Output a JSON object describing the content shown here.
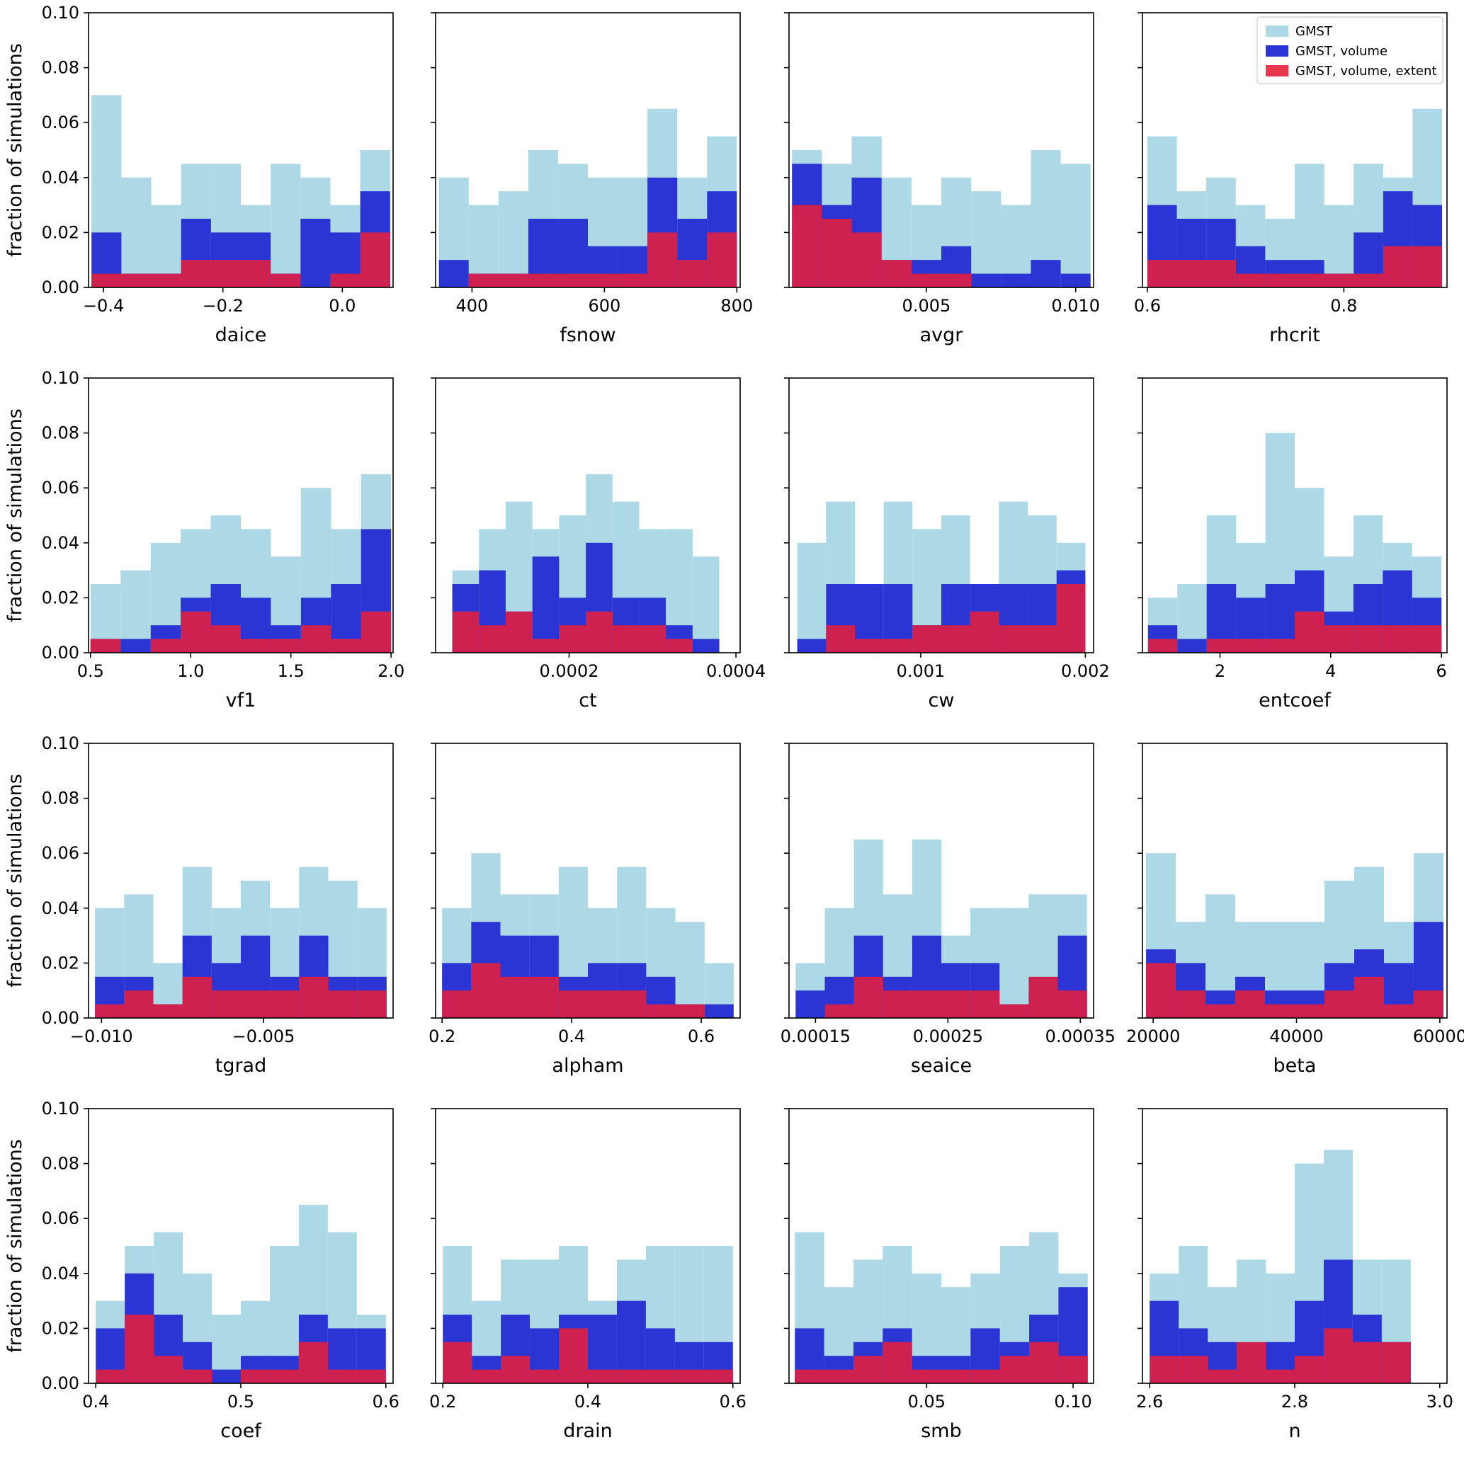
{
  "chart_data": {
    "type": "bar",
    "subtype": "overlaid-histogram-grid",
    "ylabel": "fraction of simulations",
    "ylim": [
      0,
      0.1
    ],
    "y_ticks": [
      {
        "v": 0.0,
        "label": "0.00"
      },
      {
        "v": 0.02,
        "label": "0.02"
      },
      {
        "v": 0.04,
        "label": "0.04"
      },
      {
        "v": 0.06,
        "label": "0.06"
      },
      {
        "v": 0.08,
        "label": "0.08"
      },
      {
        "v": 0.1,
        "label": "0.10"
      }
    ],
    "legend": {
      "position": "top-right-of-panel-4",
      "entries": [
        {
          "label": "GMST",
          "color": "#ADD8E6"
        },
        {
          "label": "GMST, volume",
          "color": "#2b35d4"
        },
        {
          "label": "GMST, volume, extent",
          "color": "#e8364c"
        }
      ]
    },
    "colors": {
      "gmst": "#ADD8E6",
      "volume": "#2b35d4",
      "extent": "#cf2150"
    },
    "panels": [
      {
        "xlabel": "daice",
        "xlim": [
          -0.425,
          0.085
        ],
        "bins": [
          -0.42,
          0.08
        ],
        "x_ticks": [
          {
            "v": -0.4,
            "label": "−0.4"
          },
          {
            "v": -0.2,
            "label": "−0.2"
          },
          {
            "v": 0.0,
            "label": "0.0"
          }
        ],
        "series": {
          "gmst": [
            0.07,
            0.04,
            0.03,
            0.045,
            0.045,
            0.03,
            0.045,
            0.04,
            0.03,
            0.05
          ],
          "volume": [
            0.02,
            0.005,
            0.005,
            0.025,
            0.02,
            0.02,
            0.005,
            0.025,
            0.02,
            0.035
          ],
          "extent": [
            0.005,
            0.005,
            0.005,
            0.01,
            0.01,
            0.01,
            0.005,
            0.0,
            0.005,
            0.02
          ]
        }
      },
      {
        "xlabel": "fsnow",
        "xlim": [
          345,
          805
        ],
        "bins": [
          350,
          800
        ],
        "x_ticks": [
          {
            "v": 400,
            "label": "400"
          },
          {
            "v": 600,
            "label": "600"
          },
          {
            "v": 800,
            "label": "800"
          }
        ],
        "series": {
          "gmst": [
            0.04,
            0.03,
            0.035,
            0.05,
            0.045,
            0.04,
            0.04,
            0.065,
            0.04,
            0.055
          ],
          "volume": [
            0.01,
            0.005,
            0.005,
            0.025,
            0.025,
            0.015,
            0.015,
            0.04,
            0.025,
            0.035
          ],
          "extent": [
            0.0,
            0.005,
            0.005,
            0.005,
            0.005,
            0.005,
            0.005,
            0.02,
            0.01,
            0.02
          ]
        }
      },
      {
        "xlabel": "avgr",
        "xlim": [
          0.0004,
          0.0106
        ],
        "bins": [
          0.0005,
          0.0105
        ],
        "x_ticks": [
          {
            "v": 0.005,
            "label": "0.005"
          },
          {
            "v": 0.01,
            "label": "0.010"
          }
        ],
        "series": {
          "gmst": [
            0.05,
            0.045,
            0.055,
            0.04,
            0.03,
            0.04,
            0.035,
            0.03,
            0.05,
            0.045
          ],
          "volume": [
            0.045,
            0.03,
            0.04,
            0.01,
            0.01,
            0.015,
            0.005,
            0.005,
            0.01,
            0.005
          ],
          "extent": [
            0.03,
            0.025,
            0.02,
            0.01,
            0.005,
            0.005,
            0.0,
            0.0,
            0.0,
            0.0
          ]
        }
      },
      {
        "xlabel": "rhcrit",
        "xlim": [
          0.595,
          0.905
        ],
        "bins": [
          0.6,
          0.9
        ],
        "x_ticks": [
          {
            "v": 0.6,
            "label": "0.6"
          },
          {
            "v": 0.8,
            "label": "0.8"
          }
        ],
        "series": {
          "gmst": [
            0.055,
            0.035,
            0.04,
            0.03,
            0.025,
            0.045,
            0.03,
            0.045,
            0.04,
            0.065
          ],
          "volume": [
            0.03,
            0.025,
            0.025,
            0.015,
            0.01,
            0.01,
            0.005,
            0.02,
            0.035,
            0.03
          ],
          "extent": [
            0.01,
            0.01,
            0.01,
            0.005,
            0.005,
            0.005,
            0.005,
            0.005,
            0.015,
            0.015
          ]
        }
      },
      {
        "xlabel": "vf1",
        "xlim": [
          0.49,
          2.01
        ],
        "bins": [
          0.5,
          2.0
        ],
        "x_ticks": [
          {
            "v": 0.5,
            "label": "0.5"
          },
          {
            "v": 1.0,
            "label": "1.0"
          },
          {
            "v": 1.5,
            "label": "1.5"
          },
          {
            "v": 2.0,
            "label": "2.0"
          }
        ],
        "series": {
          "gmst": [
            0.025,
            0.03,
            0.04,
            0.045,
            0.05,
            0.045,
            0.035,
            0.06,
            0.045,
            0.065
          ],
          "volume": [
            0.005,
            0.005,
            0.01,
            0.02,
            0.025,
            0.02,
            0.01,
            0.02,
            0.025,
            0.045
          ],
          "extent": [
            0.005,
            0.0,
            0.005,
            0.015,
            0.01,
            0.005,
            0.005,
            0.01,
            0.005,
            0.015
          ]
        }
      },
      {
        "xlabel": "ct",
        "xlim": [
          4e-05,
          0.000405
        ],
        "bins": [
          6e-05,
          0.00038
        ],
        "x_ticks": [
          {
            "v": 0.0002,
            "label": "0.0002"
          },
          {
            "v": 0.0004,
            "label": "0.0004"
          }
        ],
        "series": {
          "gmst": [
            0.03,
            0.045,
            0.055,
            0.045,
            0.05,
            0.065,
            0.055,
            0.045,
            0.045,
            0.035
          ],
          "volume": [
            0.025,
            0.03,
            0.015,
            0.035,
            0.02,
            0.04,
            0.02,
            0.02,
            0.01,
            0.005
          ],
          "extent": [
            0.015,
            0.01,
            0.015,
            0.005,
            0.01,
            0.015,
            0.01,
            0.01,
            0.005,
            0.0
          ]
        }
      },
      {
        "xlabel": "cw",
        "xlim": [
          0.0002,
          0.00205
        ],
        "bins": [
          0.00025,
          0.002
        ],
        "x_ticks": [
          {
            "v": 0.001,
            "label": "0.001"
          },
          {
            "v": 0.002,
            "label": "0.002"
          }
        ],
        "series": {
          "gmst": [
            0.04,
            0.055,
            0.025,
            0.055,
            0.045,
            0.05,
            0.025,
            0.055,
            0.05,
            0.04
          ],
          "volume": [
            0.005,
            0.025,
            0.025,
            0.025,
            0.01,
            0.025,
            0.025,
            0.025,
            0.025,
            0.03
          ],
          "extent": [
            0.0,
            0.01,
            0.005,
            0.005,
            0.01,
            0.01,
            0.015,
            0.01,
            0.01,
            0.025
          ]
        }
      },
      {
        "xlabel": "entcoef",
        "xlim": [
          0.6,
          6.1
        ],
        "bins": [
          0.7,
          6.0
        ],
        "x_ticks": [
          {
            "v": 2,
            "label": "2"
          },
          {
            "v": 4,
            "label": "4"
          },
          {
            "v": 6,
            "label": "6"
          }
        ],
        "series": {
          "gmst": [
            0.02,
            0.025,
            0.05,
            0.04,
            0.08,
            0.06,
            0.035,
            0.05,
            0.04,
            0.035
          ],
          "volume": [
            0.01,
            0.005,
            0.025,
            0.02,
            0.025,
            0.03,
            0.015,
            0.025,
            0.03,
            0.02
          ],
          "extent": [
            0.005,
            0.0,
            0.005,
            0.005,
            0.005,
            0.015,
            0.01,
            0.01,
            0.01,
            0.01
          ]
        }
      },
      {
        "xlabel": "tgrad",
        "xlim": [
          -0.0104,
          -0.001
        ],
        "bins": [
          -0.0102,
          -0.0012
        ],
        "x_ticks": [
          {
            "v": -0.01,
            "label": "−0.010"
          },
          {
            "v": -0.005,
            "label": "−0.005"
          }
        ],
        "series": {
          "gmst": [
            0.04,
            0.045,
            0.02,
            0.055,
            0.04,
            0.05,
            0.04,
            0.055,
            0.05,
            0.04
          ],
          "volume": [
            0.015,
            0.015,
            0.005,
            0.03,
            0.02,
            0.03,
            0.015,
            0.03,
            0.015,
            0.015
          ],
          "extent": [
            0.005,
            0.01,
            0.005,
            0.015,
            0.01,
            0.01,
            0.01,
            0.015,
            0.01,
            0.01
          ]
        }
      },
      {
        "xlabel": "alpham",
        "xlim": [
          0.19,
          0.66
        ],
        "bins": [
          0.2,
          0.65
        ],
        "x_ticks": [
          {
            "v": 0.2,
            "label": "0.2"
          },
          {
            "v": 0.4,
            "label": "0.4"
          },
          {
            "v": 0.6,
            "label": "0.6"
          }
        ],
        "series": {
          "gmst": [
            0.04,
            0.06,
            0.045,
            0.045,
            0.055,
            0.04,
            0.055,
            0.04,
            0.035,
            0.02
          ],
          "volume": [
            0.02,
            0.035,
            0.03,
            0.03,
            0.015,
            0.02,
            0.02,
            0.015,
            0.005,
            0.005
          ],
          "extent": [
            0.01,
            0.02,
            0.015,
            0.015,
            0.01,
            0.01,
            0.01,
            0.005,
            0.005,
            0.0
          ]
        }
      },
      {
        "xlabel": "seaice",
        "xlim": [
          0.00013,
          0.00036
        ],
        "bins": [
          0.000135,
          0.000355
        ],
        "x_ticks": [
          {
            "v": 0.00015,
            "label": "0.00015"
          },
          {
            "v": 0.00025,
            "label": "0.00025"
          },
          {
            "v": 0.00035,
            "label": "0.00035"
          }
        ],
        "series": {
          "gmst": [
            0.02,
            0.04,
            0.065,
            0.045,
            0.065,
            0.03,
            0.04,
            0.04,
            0.045,
            0.045
          ],
          "volume": [
            0.01,
            0.015,
            0.03,
            0.015,
            0.03,
            0.02,
            0.02,
            0.005,
            0.01,
            0.03
          ],
          "extent": [
            0.0,
            0.005,
            0.015,
            0.01,
            0.01,
            0.01,
            0.01,
            0.005,
            0.015,
            0.01
          ]
        }
      },
      {
        "xlabel": "beta",
        "xlim": [
          18500,
          61000
        ],
        "bins": [
          19000,
          60500
        ],
        "x_ticks": [
          {
            "v": 20000,
            "label": "20000"
          },
          {
            "v": 40000,
            "label": "40000"
          },
          {
            "v": 60000,
            "label": "60000"
          }
        ],
        "series": {
          "gmst": [
            0.06,
            0.035,
            0.045,
            0.035,
            0.035,
            0.035,
            0.05,
            0.055,
            0.035,
            0.06
          ],
          "volume": [
            0.025,
            0.02,
            0.01,
            0.015,
            0.01,
            0.01,
            0.02,
            0.025,
            0.02,
            0.035
          ],
          "extent": [
            0.02,
            0.01,
            0.005,
            0.01,
            0.005,
            0.005,
            0.01,
            0.015,
            0.005,
            0.01
          ]
        }
      },
      {
        "xlabel": "coef",
        "xlim": [
          0.395,
          0.605
        ],
        "bins": [
          0.4,
          0.6
        ],
        "x_ticks": [
          {
            "v": 0.4,
            "label": "0.4"
          },
          {
            "v": 0.5,
            "label": "0.5"
          },
          {
            "v": 0.6,
            "label": "0.6"
          }
        ],
        "series": {
          "gmst": [
            0.03,
            0.05,
            0.055,
            0.04,
            0.025,
            0.03,
            0.05,
            0.065,
            0.055,
            0.025
          ],
          "volume": [
            0.02,
            0.04,
            0.025,
            0.015,
            0.005,
            0.01,
            0.01,
            0.025,
            0.02,
            0.02
          ],
          "extent": [
            0.005,
            0.025,
            0.01,
            0.005,
            0.0,
            0.005,
            0.005,
            0.015,
            0.005,
            0.005
          ]
        }
      },
      {
        "xlabel": "drain",
        "xlim": [
          0.19,
          0.61
        ],
        "bins": [
          0.2,
          0.6
        ],
        "x_ticks": [
          {
            "v": 0.2,
            "label": "0.2"
          },
          {
            "v": 0.4,
            "label": "0.4"
          },
          {
            "v": 0.6,
            "label": "0.6"
          }
        ],
        "series": {
          "gmst": [
            0.05,
            0.03,
            0.045,
            0.045,
            0.05,
            0.03,
            0.045,
            0.05,
            0.05,
            0.05
          ],
          "volume": [
            0.025,
            0.01,
            0.025,
            0.02,
            0.025,
            0.025,
            0.03,
            0.02,
            0.015,
            0.015
          ],
          "extent": [
            0.015,
            0.005,
            0.01,
            0.005,
            0.02,
            0.005,
            0.005,
            0.005,
            0.005,
            0.005
          ]
        }
      },
      {
        "xlabel": "smb",
        "xlim": [
          0.003,
          0.107
        ],
        "bins": [
          0.005,
          0.105
        ],
        "x_ticks": [
          {
            "v": 0.05,
            "label": "0.05"
          },
          {
            "v": 0.1,
            "label": "0.10"
          }
        ],
        "series": {
          "gmst": [
            0.055,
            0.035,
            0.045,
            0.05,
            0.04,
            0.035,
            0.04,
            0.05,
            0.055,
            0.04
          ],
          "volume": [
            0.02,
            0.01,
            0.015,
            0.02,
            0.01,
            0.01,
            0.02,
            0.015,
            0.025,
            0.035
          ],
          "extent": [
            0.005,
            0.005,
            0.01,
            0.015,
            0.005,
            0.005,
            0.005,
            0.01,
            0.015,
            0.01
          ]
        }
      },
      {
        "xlabel": "n",
        "xlim": [
          2.59,
          3.01
        ],
        "bins": [
          2.6,
          3.0
        ],
        "x_ticks": [
          {
            "v": 2.6,
            "label": "2.6"
          },
          {
            "v": 2.8,
            "label": "2.8"
          },
          {
            "v": 3.0,
            "label": "3.0"
          }
        ],
        "series": {
          "gmst": [
            0.04,
            0.05,
            0.035,
            0.045,
            0.04,
            0.08,
            0.085,
            0.045,
            0.045,
            0.0
          ],
          "volume": [
            0.03,
            0.02,
            0.015,
            0.01,
            0.015,
            0.03,
            0.045,
            0.025,
            0.015,
            0.0
          ],
          "extent": [
            0.01,
            0.01,
            0.005,
            0.015,
            0.005,
            0.01,
            0.02,
            0.015,
            0.015,
            0.0
          ]
        }
      }
    ]
  }
}
